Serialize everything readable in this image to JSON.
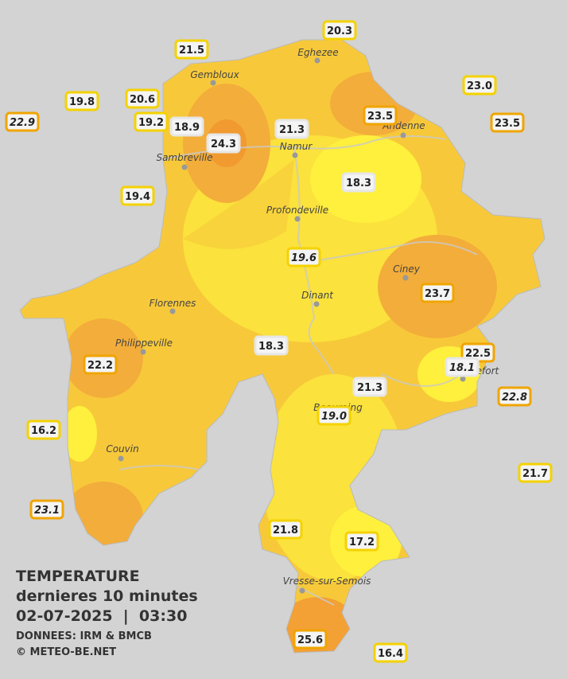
{
  "legend": {
    "title": "TEMPERATURE",
    "subtitle": "dernieres 10 minutes",
    "datetime": "02-07-2025  |  03:30",
    "source": "DONNEES: IRM & BMCB",
    "copyright": "© METEO-BE.NET"
  },
  "cities": [
    "Eghezee",
    "Gembloux",
    "Andenne",
    "Namur",
    "Sambreville",
    "Profondeville",
    "Ciney",
    "Dinant",
    "Florennes",
    "Philippeville",
    "Rochefort",
    "Beauraing",
    "Couvin",
    "Vresse-sur-Semois"
  ],
  "stations": [
    "20.3",
    "21.5",
    "23.0",
    "19.8",
    "20.6",
    "22.9",
    "19.2",
    "18.9",
    "24.3",
    "21.3",
    "23.5",
    "23.5",
    "18.3",
    "19.4",
    "19.6",
    "23.7",
    "22.5",
    "18.1",
    "18.3",
    "22.2",
    "21.3",
    "22.8",
    "19.0",
    "16.2",
    "21.7",
    "23.1",
    "21.8",
    "17.2",
    "25.6",
    "16.4"
  ]
}
